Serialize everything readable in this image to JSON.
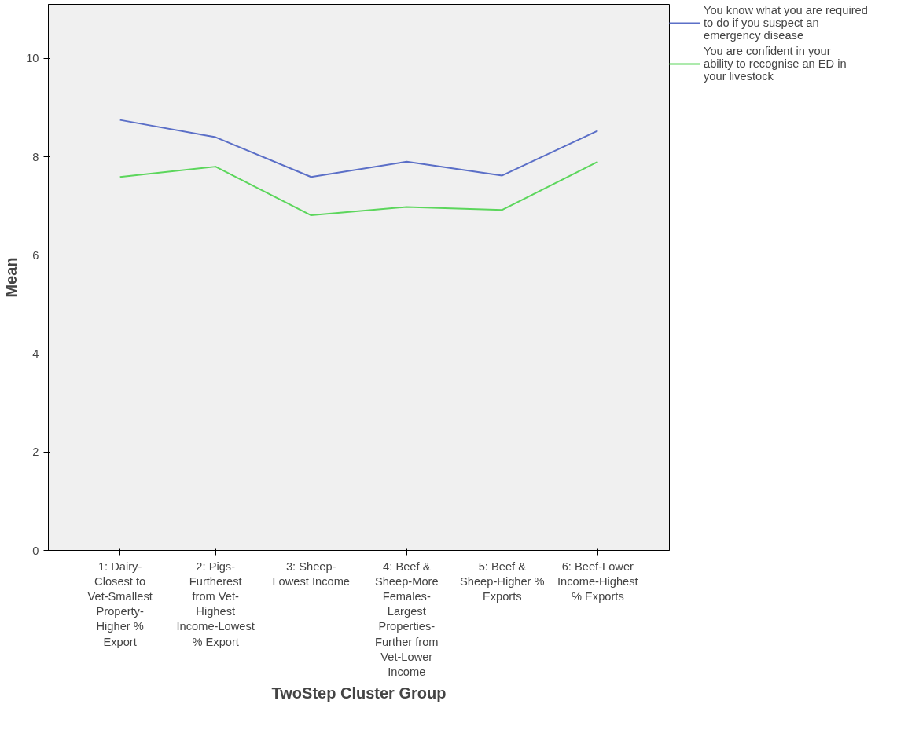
{
  "chart_data": {
    "type": "line",
    "categories": [
      "1: Dairy-Closest to Vet-Smallest Property-Higher % Export",
      "2: Pigs-Furtherest from Vet-Highest Income-Lowest % Export",
      "3: Sheep-Lowest Income",
      "4: Beef & Sheep-More Females-Largest Properties-Further from Vet-Lower Income",
      "5: Beef & Sheep-Higher % Exports",
      "6: Beef-Lower Income-Highest % Exports"
    ],
    "series": [
      {
        "name": "You know what you are required to do if you suspect an emergency disease",
        "color": "#5b6fc7",
        "values": [
          8.75,
          8.4,
          7.59,
          7.9,
          7.62,
          8.53
        ]
      },
      {
        "name": "You are confident in your ability to recognise an ED in your livestock",
        "color": "#5cd65c",
        "values": [
          7.59,
          7.8,
          6.81,
          6.98,
          6.92,
          7.9
        ]
      }
    ],
    "xlabel": "TwoStep Cluster Group",
    "ylabel": "Mean",
    "ylim": [
      0,
      11.1
    ],
    "yticks": [
      0,
      2,
      4,
      6,
      8,
      10
    ],
    "grid": false,
    "legend": "top right",
    "marker": "none",
    "line_style": "solid"
  }
}
